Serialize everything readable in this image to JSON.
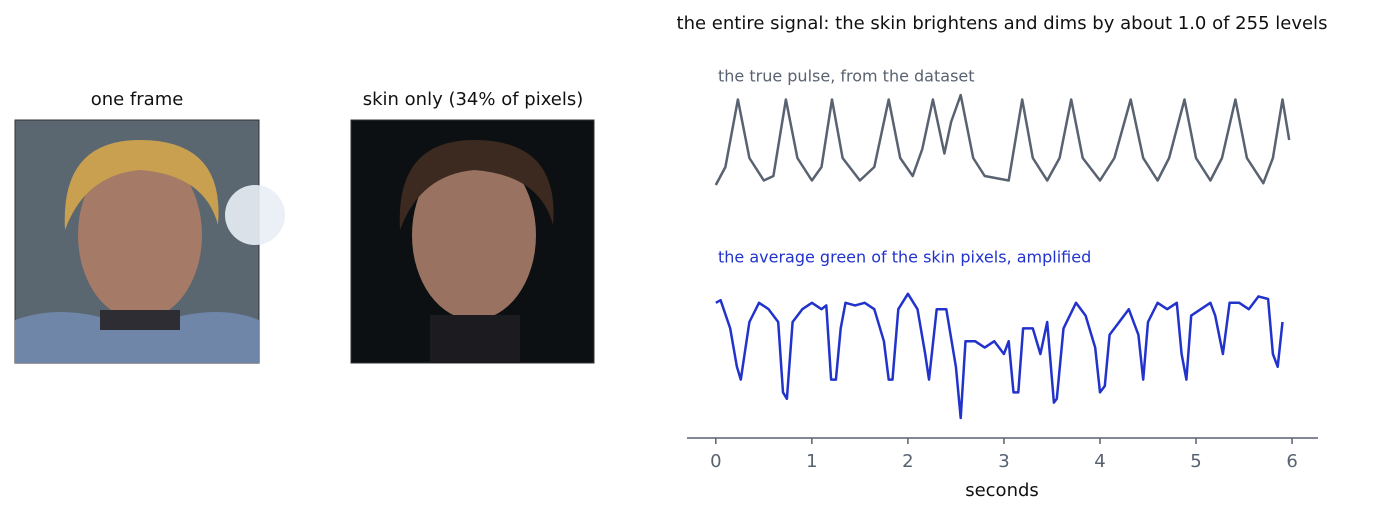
{
  "panels": [
    {
      "title": "one frame"
    },
    {
      "title": "skin only (34% of pixels)"
    }
  ],
  "chart_data": {
    "type": "line",
    "title": "the entire signal: the skin brightens and dims by about 1.0 of 255 levels",
    "xlabel": "seconds",
    "xlim": [
      -0.3,
      6.27
    ],
    "xticks": [
      0,
      1,
      2,
      3,
      4,
      5,
      6
    ],
    "series": [
      {
        "name": "the true pulse, from the dataset",
        "color": "#596270",
        "ylim": [
          0,
          1
        ],
        "x": [
          0,
          0.1,
          0.23,
          0.35,
          0.5,
          0.6,
          0.73,
          0.85,
          1.0,
          1.1,
          1.21,
          1.32,
          1.5,
          1.65,
          1.8,
          1.92,
          2.05,
          2.15,
          2.26,
          2.38,
          2.45,
          2.55,
          2.68,
          2.8,
          3.05,
          3.19,
          3.3,
          3.45,
          3.58,
          3.7,
          3.82,
          4.0,
          4.15,
          4.32,
          4.45,
          4.6,
          4.72,
          4.88,
          5.0,
          5.15,
          5.27,
          5.41,
          5.53,
          5.7,
          5.8,
          5.9,
          5.97
        ],
        "values": [
          0.0,
          0.2,
          0.95,
          0.3,
          0.05,
          0.1,
          0.95,
          0.3,
          0.05,
          0.2,
          0.95,
          0.3,
          0.05,
          0.2,
          0.95,
          0.3,
          0.1,
          0.4,
          0.95,
          0.35,
          0.7,
          1.0,
          0.3,
          0.1,
          0.05,
          0.95,
          0.3,
          0.05,
          0.3,
          0.95,
          0.3,
          0.05,
          0.3,
          0.95,
          0.3,
          0.05,
          0.3,
          0.95,
          0.3,
          0.05,
          0.3,
          0.95,
          0.3,
          0.02,
          0.3,
          0.95,
          0.5
        ]
      },
      {
        "name": "the average green of the skin pixels, amplified",
        "color": "#2233cc",
        "ylim": [
          0,
          1
        ],
        "x": [
          0,
          0.05,
          0.15,
          0.22,
          0.26,
          0.3,
          0.35,
          0.45,
          0.55,
          0.65,
          0.7,
          0.74,
          0.8,
          0.9,
          1.0,
          1.1,
          1.15,
          1.2,
          1.25,
          1.3,
          1.35,
          1.45,
          1.55,
          1.65,
          1.75,
          1.8,
          1.84,
          1.9,
          2.0,
          2.1,
          2.18,
          2.22,
          2.3,
          2.4,
          2.5,
          2.55,
          2.6,
          2.7,
          2.8,
          2.9,
          3.0,
          3.05,
          3.1,
          3.15,
          3.2,
          3.3,
          3.38,
          3.45,
          3.52,
          3.55,
          3.62,
          3.75,
          3.85,
          3.95,
          4.0,
          4.05,
          4.1,
          4.2,
          4.3,
          4.4,
          4.45,
          4.5,
          4.6,
          4.7,
          4.8,
          4.85,
          4.9,
          4.95,
          5.05,
          5.15,
          5.2,
          5.28,
          5.35,
          5.45,
          5.55,
          5.65,
          5.75,
          5.8,
          5.85,
          5.9
        ],
        "values": [
          0.9,
          0.92,
          0.7,
          0.4,
          0.3,
          0.5,
          0.75,
          0.9,
          0.85,
          0.75,
          0.2,
          0.15,
          0.75,
          0.85,
          0.9,
          0.85,
          0.88,
          0.3,
          0.3,
          0.7,
          0.9,
          0.88,
          0.9,
          0.85,
          0.6,
          0.3,
          0.3,
          0.85,
          0.97,
          0.85,
          0.5,
          0.3,
          0.85,
          0.85,
          0.4,
          0.0,
          0.6,
          0.6,
          0.55,
          0.6,
          0.5,
          0.6,
          0.2,
          0.2,
          0.7,
          0.7,
          0.5,
          0.75,
          0.12,
          0.15,
          0.7,
          0.9,
          0.8,
          0.55,
          0.2,
          0.25,
          0.65,
          0.75,
          0.85,
          0.65,
          0.3,
          0.75,
          0.9,
          0.85,
          0.9,
          0.5,
          0.3,
          0.8,
          0.85,
          0.9,
          0.8,
          0.5,
          0.9,
          0.9,
          0.85,
          0.95,
          0.93,
          0.5,
          0.4,
          0.75
        ]
      }
    ]
  }
}
